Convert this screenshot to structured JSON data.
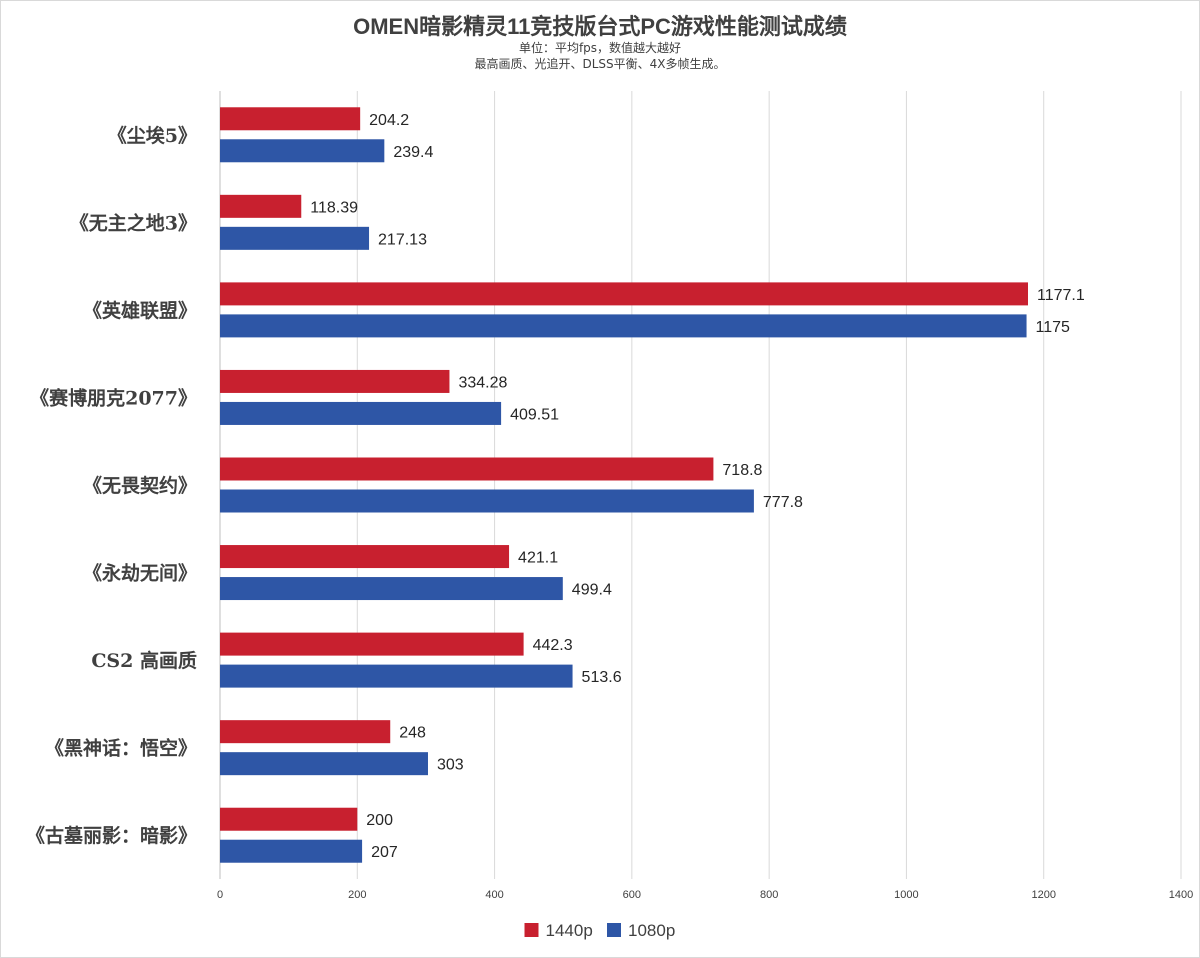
{
  "chart_data": {
    "type": "bar",
    "orientation": "horizontal",
    "title": "OMEN暗影精灵11竞技版台式PC游戏性能测试成绩",
    "subtitle_lines": [
      "单位：平均fps，数值越大越好",
      "最高画质、光追开、DLSS平衡、4X多帧生成。"
    ],
    "categories": [
      "《尘埃5》",
      "《无主之地3》",
      "《英雄联盟》",
      "《赛博朋克2077》",
      "《无畏契约》",
      "《永劫无间》",
      "CS2 高画质",
      "《黑神话：悟空》",
      "《古墓丽影：暗影》"
    ],
    "series": [
      {
        "name": "1440p",
        "color": "#c8202f",
        "values": [
          204.2,
          118.39,
          1177.1,
          334.28,
          718.8,
          421.1,
          442.3,
          248,
          200
        ],
        "labels": [
          "204.2",
          "118.39",
          "1177.1",
          "334.28",
          "718.8",
          "421.1",
          "442.3",
          "248",
          "200"
        ]
      },
      {
        "name": "1080p",
        "color": "#2e56a6",
        "values": [
          239.4,
          217.13,
          1175,
          409.51,
          777.8,
          499.4,
          513.6,
          303,
          207
        ],
        "labels": [
          "239.4",
          "217.13",
          "1175",
          "409.51",
          "777.8",
          "499.4",
          "513.6",
          "303",
          "207"
        ]
      }
    ],
    "xlim": [
      0,
      1400
    ],
    "xticks": [
      "0",
      "200",
      "400",
      "600",
      "800",
      "1000",
      "1200",
      "1400"
    ],
    "grid": true,
    "legend_position": "bottom-center"
  }
}
